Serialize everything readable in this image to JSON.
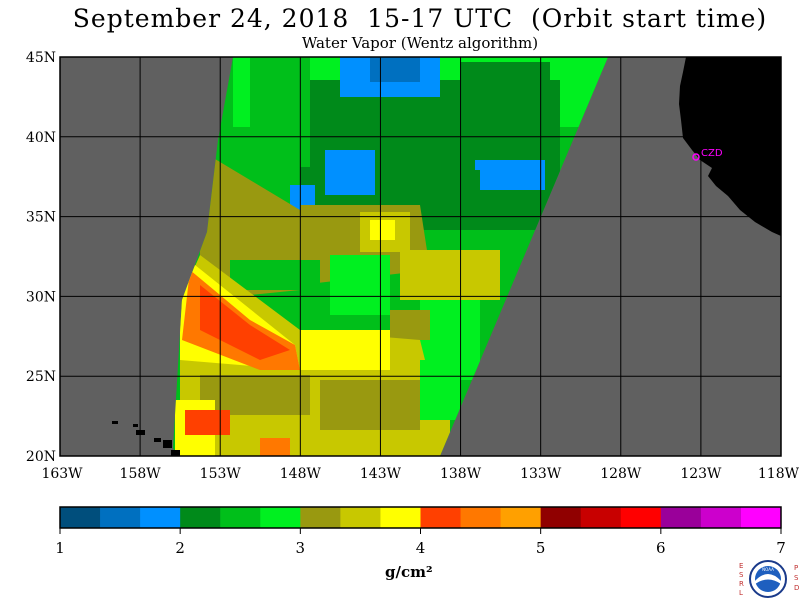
{
  "title": "September 24, 2018  15-17 UTC  (Orbit start time)",
  "subtitle": "Water Vapor (Wentz algorithm)",
  "map": {
    "lat_labels": [
      "45N",
      "40N",
      "35N",
      "30N",
      "25N",
      "20N"
    ],
    "lon_labels": [
      "163W",
      "158W",
      "153W",
      "148W",
      "143W",
      "138W",
      "133W",
      "128W",
      "123W",
      "118W"
    ],
    "lat_range": [
      20,
      45
    ],
    "lon_range": [
      -163,
      -118
    ],
    "station_label": "CZD",
    "colors": {
      "no_data": "#606060",
      "land": "#000000",
      "station": "#ff00ff",
      "grid": "#000000"
    }
  },
  "colorbar": {
    "tick_labels": [
      "1",
      "2",
      "3",
      "4",
      "5",
      "6",
      "7"
    ],
    "range": [
      1,
      7
    ],
    "unit": "g/cm²",
    "colors": [
      "#004e7c",
      "#0070c0",
      "#0090ff",
      "#008a1a",
      "#00bf1a",
      "#00f020",
      "#999910",
      "#c8c800",
      "#ffff00",
      "#ff4000",
      "#ff7800",
      "#ffa000",
      "#900000",
      "#c80000",
      "#ff0000",
      "#9a009a",
      "#cc00cc",
      "#ff00ff"
    ]
  },
  "logo": {
    "left_letters": "ESRL",
    "right_letters": "PSD",
    "center_text": "NOAA"
  }
}
